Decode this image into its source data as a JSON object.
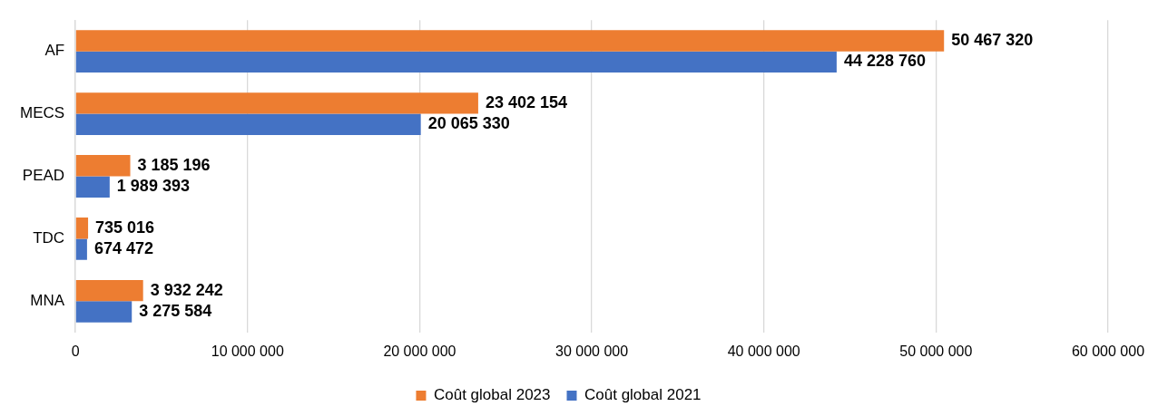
{
  "chart_data": {
    "type": "bar",
    "orientation": "horizontal",
    "categories": [
      "AF",
      "MECS",
      "PEAD",
      "TDC",
      "MNA"
    ],
    "series": [
      {
        "name": "Coût global 2023",
        "color": "#ed7d31",
        "values": [
          50467320,
          23402154,
          3185196,
          735016,
          3932242
        ],
        "value_labels": [
          "50 467 320",
          "23 402 154",
          "3 185 196",
          "735 016",
          "3 932 242"
        ]
      },
      {
        "name": "Coût global 2021",
        "color": "#4472c4",
        "values": [
          44228760,
          20065330,
          1989393,
          674472,
          3275584
        ],
        "value_labels": [
          "44 228 760",
          "20 065 330",
          "1 989 393",
          "674 472",
          "3 275 584"
        ]
      }
    ],
    "xlim": [
      0,
      60000000
    ],
    "xticks": [
      0,
      {
        "value": 10000000,
        "label": "10 000 000"
      },
      {
        "value": 20000000,
        "label": "20 000 000"
      },
      {
        "value": 30000000,
        "label": "30 000 000"
      },
      {
        "value": 40000000,
        "label": "40 000 000"
      },
      {
        "value": 50000000,
        "label": "50 000 000"
      },
      {
        "value": 60000000,
        "label": "60 000 000"
      }
    ],
    "grid": "x",
    "legend": "bottom"
  }
}
